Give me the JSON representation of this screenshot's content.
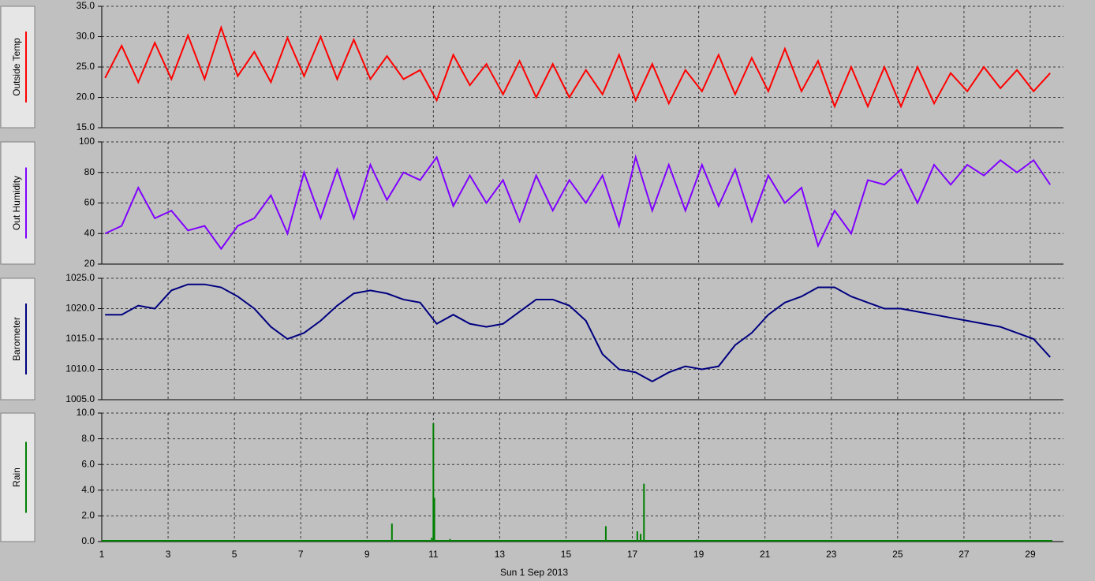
{
  "chart_data": [
    {
      "type": "line",
      "ylabel": "Outside Temp",
      "xlim": [
        1,
        30
      ],
      "ylim": [
        15,
        35
      ],
      "yticks": [
        {
          "value": 15,
          "label": "15.0"
        },
        {
          "value": 20,
          "label": "20.0"
        },
        {
          "value": 25,
          "label": "25.0"
        },
        {
          "value": 30,
          "label": "30.0"
        },
        {
          "value": 35,
          "label": "35.0"
        }
      ],
      "xticks": [
        1,
        3,
        5,
        7,
        9,
        11,
        13,
        15,
        17,
        19,
        21,
        23,
        25,
        27,
        29
      ],
      "grid": true,
      "x": [
        1.1,
        1.6,
        2.1,
        2.6,
        3.1,
        3.6,
        4.1,
        4.6,
        5.1,
        5.6,
        6.1,
        6.6,
        7.1,
        7.6,
        8.1,
        8.6,
        9.1,
        9.6,
        10.1,
        10.6,
        11.1,
        11.6,
        12.1,
        12.6,
        13.1,
        13.6,
        14.1,
        14.6,
        15.1,
        15.6,
        16.1,
        16.6,
        17.1,
        17.6,
        18.1,
        18.6,
        19.1,
        19.6,
        20.1,
        20.6,
        21.1,
        21.6,
        22.1,
        22.6,
        23.1,
        23.6,
        24.1,
        24.6,
        25.1,
        25.6,
        26.1,
        26.6,
        27.1,
        27.6,
        28.1,
        28.6,
        29.1,
        29.6
      ],
      "series": [
        {
          "color": "#ff0000",
          "values": [
            23.2,
            28.5,
            22.5,
            29.0,
            23.0,
            30.2,
            23.0,
            31.5,
            23.5,
            27.5,
            22.5,
            29.8,
            23.5,
            30.0,
            23.0,
            29.5,
            23.0,
            26.8,
            23.0,
            24.5,
            19.5,
            27.0,
            22.0,
            25.5,
            20.5,
            26.0,
            20.0,
            25.5,
            20.0,
            24.5,
            20.5,
            27.0,
            19.5,
            25.5,
            19.0,
            24.5,
            21.0,
            27.0,
            20.5,
            26.5,
            21.0,
            28.0,
            21.0,
            26.0,
            18.5,
            25.0,
            18.5,
            25.0,
            18.5,
            25.0,
            19.0,
            24.0,
            21.0,
            25.0,
            21.5,
            24.5,
            21.0,
            24.0
          ]
        }
      ]
    },
    {
      "type": "line",
      "ylabel": "Out Humidity",
      "xlim": [
        1,
        30
      ],
      "ylim": [
        20,
        100
      ],
      "yticks": [
        20,
        40,
        60,
        80,
        100
      ],
      "xticks": [
        1,
        3,
        5,
        7,
        9,
        11,
        13,
        15,
        17,
        19,
        21,
        23,
        25,
        27,
        29
      ],
      "grid": true,
      "x": [
        1.1,
        1.6,
        2.1,
        2.6,
        3.1,
        3.6,
        4.1,
        4.6,
        5.1,
        5.6,
        6.1,
        6.6,
        7.1,
        7.6,
        8.1,
        8.6,
        9.1,
        9.6,
        10.1,
        10.6,
        11.1,
        11.6,
        12.1,
        12.6,
        13.1,
        13.6,
        14.1,
        14.6,
        15.1,
        15.6,
        16.1,
        16.6,
        17.1,
        17.6,
        18.1,
        18.6,
        19.1,
        19.6,
        20.1,
        20.6,
        21.1,
        21.6,
        22.1,
        22.6,
        23.1,
        23.6,
        24.1,
        24.6,
        25.1,
        25.6,
        26.1,
        26.6,
        27.1,
        27.6,
        28.1,
        28.6,
        29.1,
        29.6
      ],
      "series": [
        {
          "color": "#8000ff",
          "values": [
            40,
            45,
            70,
            50,
            55,
            42,
            45,
            30,
            45,
            50,
            65,
            40,
            80,
            50,
            82,
            50,
            85,
            62,
            80,
            75,
            90,
            58,
            78,
            60,
            75,
            48,
            78,
            55,
            75,
            60,
            78,
            45,
            90,
            55,
            85,
            55,
            85,
            58,
            82,
            48,
            78,
            60,
            70,
            32,
            55,
            40,
            75,
            72,
            82,
            60,
            85,
            72,
            85,
            78,
            88,
            80,
            88,
            72
          ]
        }
      ]
    },
    {
      "type": "line",
      "ylabel": "Barometer",
      "xlim": [
        1,
        30
      ],
      "ylim": [
        1005,
        1025
      ],
      "yticks": [
        {
          "value": 1005,
          "label": "1005.0"
        },
        {
          "value": 1010,
          "label": "1010.0"
        },
        {
          "value": 1015,
          "label": "1015.0"
        },
        {
          "value": 1020,
          "label": "1020.0"
        },
        {
          "value": 1025,
          "label": "1025.0"
        }
      ],
      "xticks": [
        1,
        3,
        5,
        7,
        9,
        11,
        13,
        15,
        17,
        19,
        21,
        23,
        25,
        27,
        29
      ],
      "grid": true,
      "x": [
        1.1,
        1.6,
        2.1,
        2.6,
        3.1,
        3.6,
        4.1,
        4.6,
        5.1,
        5.6,
        6.1,
        6.6,
        7.1,
        7.6,
        8.1,
        8.6,
        9.1,
        9.6,
        10.1,
        10.6,
        11.1,
        11.6,
        12.1,
        12.6,
        13.1,
        13.6,
        14.1,
        14.6,
        15.1,
        15.6,
        16.1,
        16.6,
        17.1,
        17.6,
        18.1,
        18.6,
        19.1,
        19.6,
        20.1,
        20.6,
        21.1,
        21.6,
        22.1,
        22.6,
        23.1,
        23.6,
        24.1,
        24.6,
        25.1,
        25.6,
        26.1,
        26.6,
        27.1,
        27.6,
        28.1,
        28.6,
        29.1,
        29.6
      ],
      "series": [
        {
          "color": "#000080",
          "values": [
            1019,
            1019,
            1020.5,
            1020,
            1023,
            1024,
            1024,
            1023.5,
            1022,
            1020,
            1017,
            1015,
            1016,
            1018,
            1020.5,
            1022.5,
            1023,
            1022.5,
            1021.5,
            1021,
            1017.5,
            1019,
            1017.5,
            1017,
            1017.5,
            1019.5,
            1021.5,
            1021.5,
            1020.5,
            1018,
            1012.5,
            1010,
            1009.5,
            1008,
            1009.5,
            1010.5,
            1010,
            1010.5,
            1014,
            1016,
            1019,
            1021,
            1022,
            1023.5,
            1023.5,
            1022,
            1021,
            1020,
            1020,
            1019.5,
            1019,
            1018.5,
            1018,
            1017.5,
            1017,
            1016,
            1015,
            1012
          ]
        }
      ]
    },
    {
      "type": "bar",
      "ylabel": "Rain",
      "xlabel": "Sun 1 Sep 2013",
      "xlim": [
        1,
        30
      ],
      "ylim": [
        0,
        10
      ],
      "yticks": [
        {
          "value": 0,
          "label": "0.0"
        },
        {
          "value": 2,
          "label": "2.0"
        },
        {
          "value": 4,
          "label": "4.0"
        },
        {
          "value": 6,
          "label": "6.0"
        },
        {
          "value": 8,
          "label": "8.0"
        },
        {
          "value": 10,
          "label": "10.0"
        }
      ],
      "xticks": [
        1,
        3,
        5,
        7,
        9,
        11,
        13,
        15,
        17,
        19,
        21,
        23,
        25,
        27,
        29
      ],
      "grid": true,
      "x": [
        9.75,
        10.95,
        11.0,
        11.03,
        11.5,
        16.2,
        17.15,
        17.25,
        17.35,
        18.95,
        19.45,
        22.1
      ],
      "series": [
        {
          "color": "#008000",
          "values": [
            1.4,
            0.3,
            9.2,
            3.4,
            0.2,
            1.2,
            0.8,
            0.6,
            4.5,
            0.15,
            0.1,
            0.1
          ]
        }
      ]
    }
  ]
}
